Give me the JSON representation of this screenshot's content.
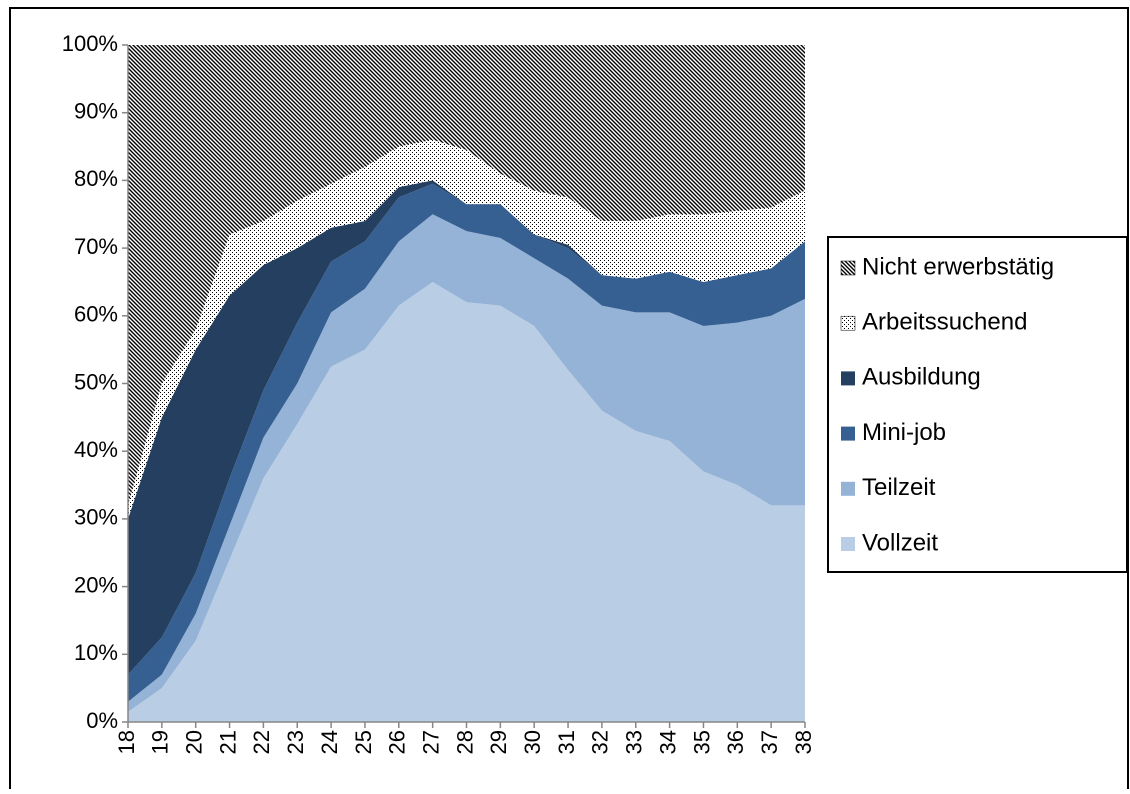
{
  "chart_data": {
    "type": "stacked_area",
    "categories": [
      "18",
      "19",
      "20",
      "21",
      "22",
      "23",
      "24",
      "25",
      "26",
      "27",
      "28",
      "29",
      "30",
      "31",
      "32",
      "33",
      "34",
      "35",
      "36",
      "37",
      "38"
    ],
    "series": [
      {
        "name": "Vollzeit",
        "color": "#b9cde5",
        "values": [
          1.5,
          5,
          12,
          24,
          36,
          44,
          52.5,
          55,
          61.5,
          65,
          62,
          61.5,
          58.5,
          52,
          46,
          43,
          41.5,
          37,
          35,
          32,
          32
        ]
      },
      {
        "name": "Teilzeit",
        "color": "#95b3d7",
        "values": [
          1.5,
          2,
          4,
          5,
          6,
          6,
          8,
          9,
          9.5,
          10,
          10.5,
          10,
          10,
          13.5,
          15.5,
          17.5,
          19,
          21.5,
          24,
          28,
          30.5
        ]
      },
      {
        "name": "Mini-job",
        "color": "#366092",
        "values": [
          4,
          5.5,
          6,
          7,
          7,
          9,
          7.5,
          7,
          6.5,
          4.5,
          4,
          5,
          3.5,
          4.5,
          4.5,
          5,
          6,
          6.5,
          7,
          7,
          8.5
        ]
      },
      {
        "name": "Ausbildung",
        "color": "#243f60",
        "values": [
          23,
          32.5,
          33,
          27,
          18.5,
          11,
          5,
          3,
          1.5,
          0.5,
          0,
          0,
          0,
          0.5,
          0,
          0,
          0,
          0,
          0,
          0,
          0
        ]
      },
      {
        "name": "Arbeitssuchend",
        "color": "#000000",
        "pattern": "dots",
        "values": [
          2,
          5,
          3,
          9,
          6.5,
          7,
          6.5,
          8,
          6,
          6,
          8,
          4.5,
          6.5,
          7,
          8,
          8.5,
          8.5,
          10,
          9.5,
          9,
          7.5
        ]
      },
      {
        "name": "Nicht erwerbstätig",
        "color": "#000000",
        "pattern": "hatch",
        "values": [
          68,
          50,
          42,
          28,
          26,
          23,
          20.5,
          18,
          15,
          14,
          15.5,
          19,
          21.5,
          22.5,
          26,
          26,
          25,
          25,
          24.5,
          24,
          21.5
        ]
      }
    ],
    "ylim": [
      0,
      100
    ],
    "yticks": [
      {
        "value": 0,
        "label": "0%"
      },
      {
        "value": 10,
        "label": "10%"
      },
      {
        "value": 20,
        "label": "20%"
      },
      {
        "value": 30,
        "label": "30%"
      },
      {
        "value": 40,
        "label": "40%"
      },
      {
        "value": 50,
        "label": "50%"
      },
      {
        "value": 60,
        "label": "60%"
      },
      {
        "value": 70,
        "label": "70%"
      },
      {
        "value": 80,
        "label": "80%"
      },
      {
        "value": 90,
        "label": "90%"
      },
      {
        "value": 100,
        "label": "100%"
      }
    ],
    "legend": "right"
  }
}
